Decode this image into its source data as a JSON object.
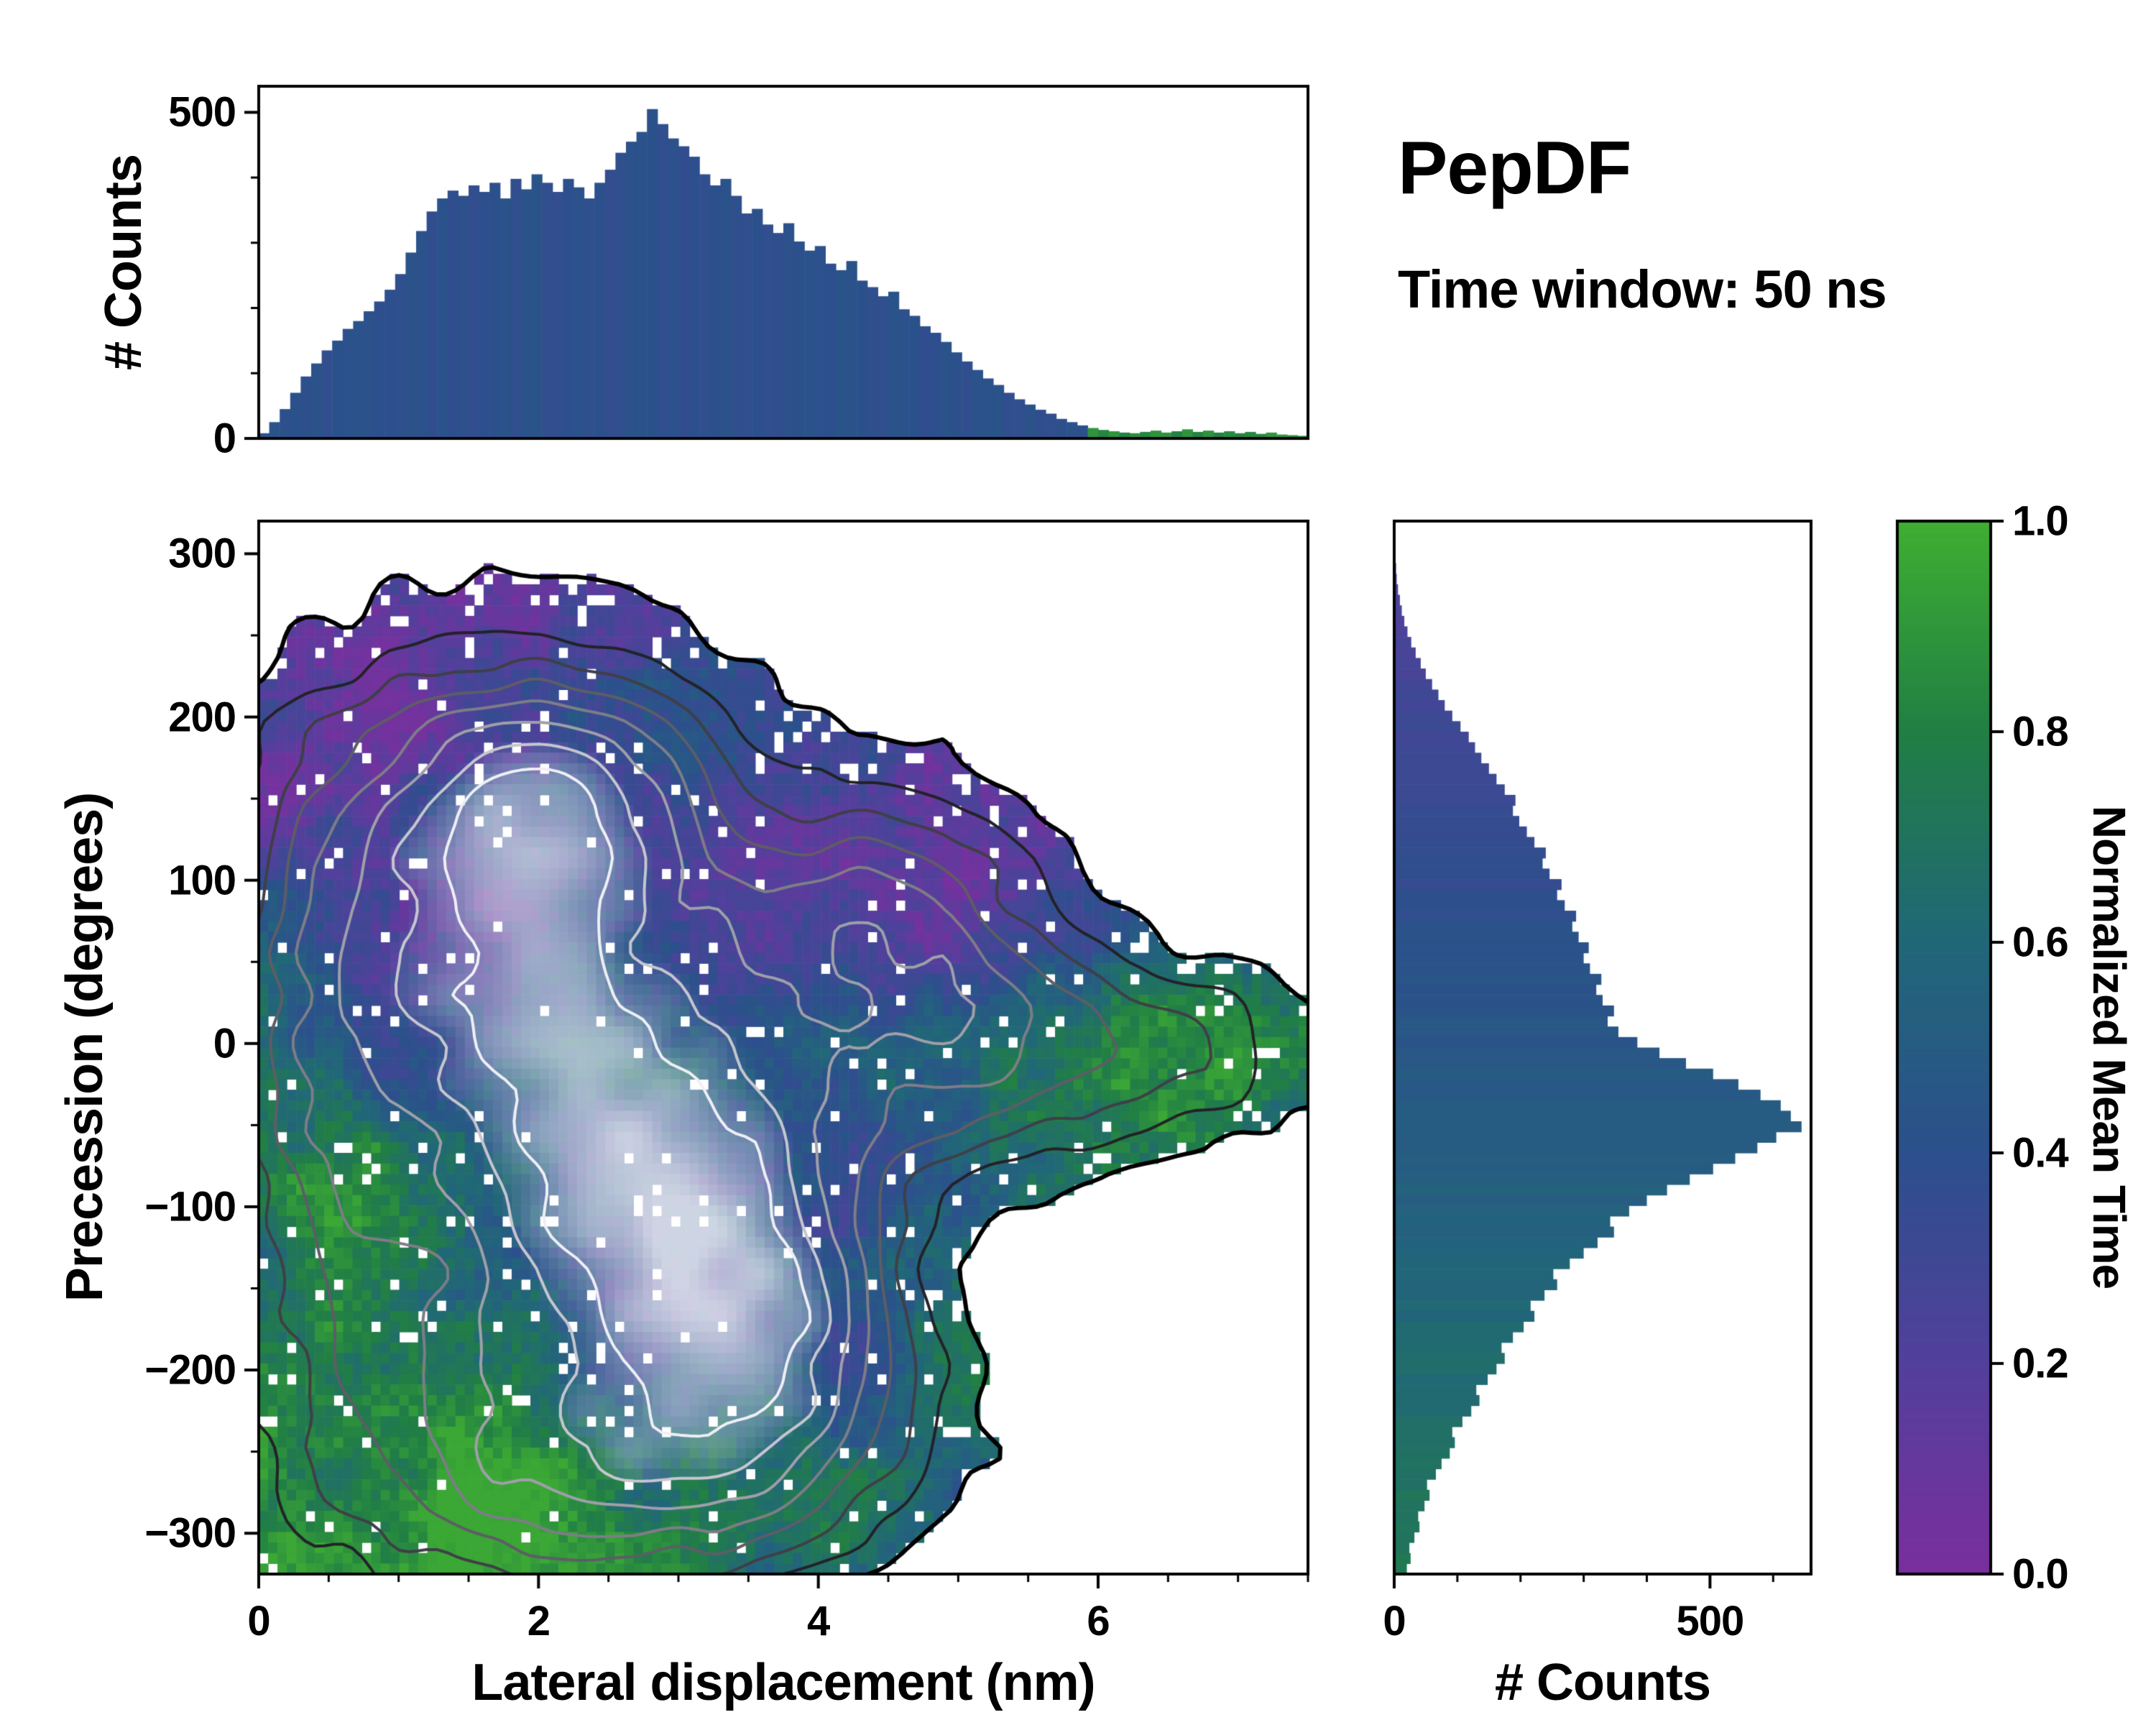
{
  "title": "PepDF",
  "subtitle": "Time window: 50 ns",
  "colorbar": {
    "label": "Normalized Mean Time",
    "ticks": [
      {
        "v": 0.0,
        "label": "0.0"
      },
      {
        "v": 0.2,
        "label": "0.2"
      },
      {
        "v": 0.4,
        "label": "0.4"
      },
      {
        "v": 0.6,
        "label": "0.6"
      },
      {
        "v": 0.8,
        "label": "0.8"
      },
      {
        "v": 1.0,
        "label": "1.0"
      }
    ],
    "stops": [
      [
        0.0,
        "#7a2f9e"
      ],
      [
        0.2,
        "#52409c"
      ],
      [
        0.4,
        "#2c508c"
      ],
      [
        0.6,
        "#216778"
      ],
      [
        0.8,
        "#217f44"
      ],
      [
        1.0,
        "#3fae32"
      ]
    ]
  },
  "chart_data": [
    {
      "type": "bar",
      "id": "top_histogram",
      "orientation": "vertical",
      "xlabel": "",
      "ylabel": "# Counts",
      "xlim": [
        0,
        7.5
      ],
      "ylim": [
        0,
        540
      ],
      "yticks": [
        {
          "v": 0,
          "label": "0"
        },
        {
          "v": 500,
          "label": "500"
        }
      ],
      "y_minor_step": 100,
      "x_bin_start": 0,
      "x_bin_width": 0.075,
      "values": [
        8,
        25,
        45,
        70,
        95,
        115,
        135,
        150,
        168,
        180,
        195,
        210,
        228,
        252,
        285,
        318,
        348,
        368,
        380,
        372,
        388,
        378,
        392,
        368,
        398,
        382,
        405,
        392,
        378,
        398,
        385,
        368,
        392,
        412,
        438,
        455,
        470,
        505,
        482,
        460,
        448,
        432,
        405,
        388,
        398,
        372,
        345,
        352,
        328,
        315,
        330,
        302,
        288,
        295,
        268,
        258,
        272,
        242,
        232,
        218,
        225,
        198,
        188,
        172,
        162,
        148,
        132,
        118,
        105,
        92,
        82,
        70,
        60,
        52,
        44,
        38,
        30,
        25,
        20,
        16,
        13,
        11,
        9,
        8,
        10,
        12,
        9,
        11,
        14,
        10,
        12,
        9,
        11,
        8,
        10,
        7,
        9,
        6,
        5,
        4
      ],
      "color_rule": {
        "base_t": 0.4,
        "tail_start_x": 5.95,
        "tail_t": 0.85
      }
    },
    {
      "type": "heatmap",
      "id": "joint_2d_histogram",
      "xlabel": "Lateral displacement (nm)",
      "ylabel": "Precession (degrees)",
      "value_label": "Normalized Mean Time",
      "xlim": [
        0,
        7.5
      ],
      "ylim": [
        -325,
        320
      ],
      "xticks": [
        {
          "v": 0,
          "label": "0"
        },
        {
          "v": 2,
          "label": "2"
        },
        {
          "v": 4,
          "label": "4"
        },
        {
          "v": 6,
          "label": "6"
        }
      ],
      "yticks": [
        {
          "v": -300,
          "label": "−300"
        },
        {
          "v": -200,
          "label": "−200"
        },
        {
          "v": -100,
          "label": "−100"
        },
        {
          "v": 0,
          "label": "0"
        },
        {
          "v": 100,
          "label": "100"
        },
        {
          "v": 200,
          "label": "200"
        },
        {
          "v": 300,
          "label": "300"
        }
      ],
      "x_minor_step": 0.5,
      "y_minor_step": 50,
      "generator": {
        "grid_nx": 112,
        "grid_ny": 100,
        "mask_threshold": 0.14,
        "boundary_noise_amp": 0.12,
        "density_components": [
          [
            1.0,
            2.6,
            1.35,
            -60,
            115
          ],
          [
            0.75,
            1.6,
            1.0,
            90,
            95
          ],
          [
            0.6,
            2.3,
            1.0,
            165,
            48
          ],
          [
            0.55,
            3.3,
            0.9,
            -150,
            80
          ],
          [
            0.5,
            1.5,
            0.9,
            -250,
            70
          ],
          [
            0.48,
            2.9,
            0.9,
            -275,
            42
          ],
          [
            0.55,
            4.35,
            0.8,
            90,
            55
          ],
          [
            0.45,
            5.0,
            0.6,
            0,
            60
          ],
          [
            0.5,
            6.3,
            0.9,
            -5,
            40
          ],
          [
            0.35,
            0.4,
            0.5,
            -40,
            150
          ],
          [
            0.4,
            3.9,
            0.7,
            -210,
            60
          ],
          [
            -0.28,
            3.55,
            0.5,
            155,
            45
          ],
          [
            -0.22,
            4.9,
            0.45,
            -120,
            55
          ]
        ],
        "value_base": 0.45,
        "value_y_slope": -0.00085,
        "value_noise_amp_low": 0.34,
        "value_noise_amp_high": 0.2,
        "value_components": [
          [
            0.32,
            1.5,
            0.8,
            -285,
            45
          ],
          [
            0.35,
            6.35,
            1.0,
            -5,
            50
          ],
          [
            0.25,
            0.45,
            0.5,
            -120,
            70
          ],
          [
            -0.3,
            4.25,
            0.8,
            95,
            55
          ],
          [
            -0.3,
            3.2,
            0.7,
            -185,
            55
          ],
          [
            -0.22,
            1.0,
            0.7,
            150,
            60
          ]
        ],
        "hole_base_prob": 0.04,
        "contour_levels": [
          0.14,
          0.3,
          0.45,
          0.6,
          0.75,
          0.9,
          1.05,
          1.18
        ],
        "contour_colors": [
          "#000000",
          "#222228",
          "#3f3f47",
          "#5d5d66",
          "#7d7d87",
          "#9f9fa9",
          "#c6c6cf",
          "#efeff5"
        ],
        "contour_widths": [
          6,
          4,
          4,
          4,
          4,
          4,
          4,
          4
        ]
      }
    },
    {
      "type": "bar",
      "id": "right_histogram",
      "orientation": "horizontal",
      "xlabel": "# Counts",
      "ylabel": "",
      "xlim": [
        0,
        660
      ],
      "xticks": [
        {
          "v": 0,
          "label": "0"
        },
        {
          "v": 500,
          "label": "500"
        }
      ],
      "x_minor_step": 100,
      "y_bin_start": -325,
      "y_bin_width": 6.45,
      "values": [
        20,
        26,
        24,
        32,
        40,
        38,
        48,
        56,
        52,
        66,
        75,
        88,
        96,
        92,
        108,
        122,
        135,
        130,
        148,
        162,
        175,
        170,
        188,
        205,
        222,
        216,
        238,
        258,
        252,
        278,
        300,
        322,
        348,
        342,
        372,
        400,
        432,
        468,
        505,
        540,
        575,
        605,
        645,
        628,
        612,
        580,
        545,
        505,
        462,
        420,
        385,
        355,
        338,
        348,
        330,
        320,
        328,
        310,
        300,
        308,
        292,
        282,
        288,
        270,
        258,
        265,
        246,
        235,
        240,
        222,
        210,
        198,
        188,
        192,
        175,
        162,
        150,
        138,
        128,
        118,
        105,
        92,
        80,
        70,
        60,
        50,
        42,
        34,
        27,
        21,
        16,
        12,
        9,
        6,
        4,
        3,
        2,
        1,
        0,
        0
      ],
      "color_rule": {
        "base_t": 0.46,
        "slope_per_deg": -0.00085
      }
    }
  ]
}
